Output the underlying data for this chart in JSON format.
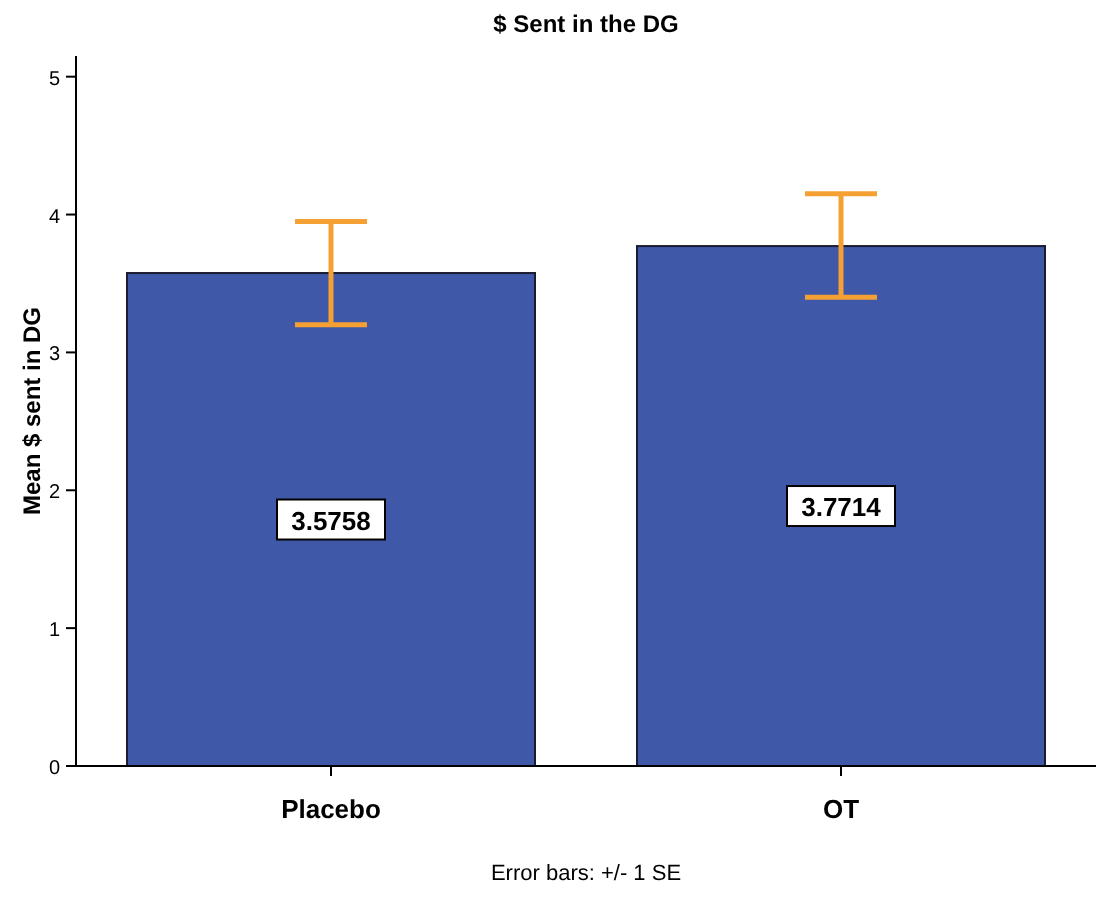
{
  "chart_data": {
    "type": "bar",
    "title": "$ Sent in the DG",
    "ylabel": "Mean $ sent in DG",
    "categories": [
      "Placebo",
      "OT"
    ],
    "values": [
      3.5758,
      3.7714
    ],
    "color": "#3f58a8",
    "errors": [
      [
        3.2,
        3.95
      ],
      [
        3.4,
        4.15
      ]
    ],
    "ylim": [
      0,
      5.15
    ],
    "yticks": [
      0,
      1,
      2,
      3,
      4,
      5
    ],
    "data_labels": true,
    "annotations": [
      "Error bars: +/- 1 SE"
    ]
  }
}
